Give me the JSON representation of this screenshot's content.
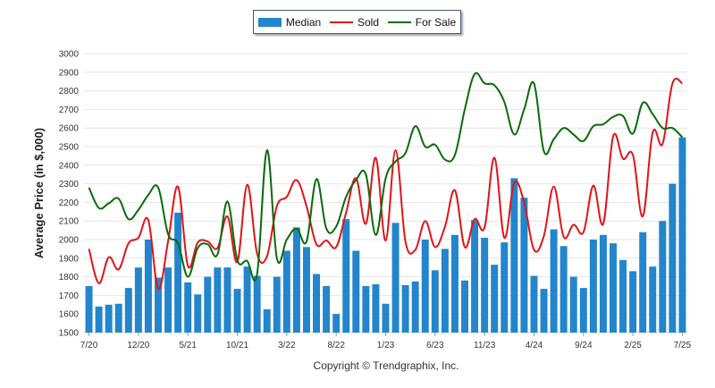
{
  "legend": {
    "median_label": "Median",
    "sold_label": "Sold",
    "forsale_label": "For Sale"
  },
  "colors": {
    "median": "#2385cc",
    "sold": "#e0141b",
    "forsale": "#0a6b0a"
  },
  "copyright": "Copyright © Trendgraphix, Inc.",
  "chart_data": {
    "type": "bar",
    "ylabel": "Average Price (in $,000)",
    "ylim": [
      1500,
      3000
    ],
    "yticks": [
      1500,
      1600,
      1700,
      1800,
      1900,
      2000,
      2100,
      2200,
      2300,
      2400,
      2500,
      2600,
      2700,
      2800,
      2900,
      3000
    ],
    "grid": true,
    "legend_position": "top-center",
    "categories": [
      "7/20",
      "8/20",
      "9/20",
      "10/20",
      "11/20",
      "12/20",
      "1/21",
      "2/21",
      "3/21",
      "4/21",
      "5/21",
      "6/21",
      "7/21",
      "8/21",
      "9/21",
      "10/21",
      "11/21",
      "12/21",
      "1/22",
      "2/22",
      "3/22",
      "4/22",
      "5/22",
      "6/22",
      "7/22",
      "8/22",
      "9/22",
      "10/22",
      "11/22",
      "12/22",
      "1/23",
      "2/23",
      "3/23",
      "4/23",
      "5/23",
      "6/23",
      "7/23",
      "8/23",
      "9/23",
      "10/23",
      "11/23",
      "12/23",
      "1/24",
      "2/24",
      "3/24",
      "4/24",
      "5/24",
      "6/24",
      "7/24",
      "8/24",
      "9/24",
      "10/24",
      "11/24",
      "12/24",
      "1/25",
      "2/25",
      "3/25",
      "4/25",
      "5/25",
      "6/25",
      "7/25"
    ],
    "xticks": [
      "7/20",
      "12/20",
      "5/21",
      "10/21",
      "3/22",
      "8/22",
      "1/23",
      "6/23",
      "11/23",
      "4/24",
      "9/24",
      "2/25",
      "7/25"
    ],
    "series": [
      {
        "name": "Median",
        "kind": "bar",
        "values": [
          1750,
          1640,
          1650,
          1655,
          1740,
          1850,
          2000,
          1795,
          1850,
          2145,
          1770,
          1705,
          1800,
          1850,
          1850,
          1735,
          1855,
          1805,
          1625,
          1800,
          1940,
          2065,
          1960,
          1815,
          1750,
          1600,
          2110,
          1940,
          1750,
          1760,
          1655,
          2090,
          1755,
          1775,
          2000,
          1835,
          1950,
          2025,
          1780,
          2105,
          2010,
          1865,
          1985,
          2330,
          2225,
          1805,
          1735,
          2055,
          1965,
          1800,
          1740,
          2000,
          2025,
          1980,
          1890,
          1830,
          2040,
          1855,
          2100,
          2300,
          2550
        ]
      },
      {
        "name": "Sold",
        "kind": "line",
        "values": [
          1950,
          1765,
          1905,
          1840,
          1980,
          2010,
          2105,
          1735,
          1990,
          2285,
          1860,
          1985,
          1990,
          1955,
          2125,
          1880,
          2295,
          1925,
          1910,
          2180,
          2230,
          2320,
          2180,
          1975,
          1995,
          1960,
          2145,
          2330,
          2085,
          2440,
          1995,
          2480,
          1990,
          1945,
          2100,
          1960,
          2070,
          2265,
          1960,
          2110,
          2065,
          2440,
          2010,
          2305,
          2200,
          1945,
          2020,
          2285,
          2015,
          2080,
          2040,
          2290,
          2085,
          2555,
          2435,
          2455,
          2125,
          2575,
          2515,
          2840,
          2840
        ]
      },
      {
        "name": "For Sale",
        "kind": "line",
        "values": [
          2280,
          2170,
          2195,
          2220,
          2110,
          2160,
          2240,
          2280,
          2030,
          1980,
          1800,
          1955,
          1975,
          1920,
          2205,
          1890,
          1885,
          1815,
          2480,
          1900,
          2000,
          2060,
          1990,
          2325,
          2060,
          2070,
          2230,
          2320,
          2350,
          2025,
          2330,
          2420,
          2465,
          2610,
          2500,
          2510,
          2430,
          2455,
          2700,
          2890,
          2840,
          2830,
          2740,
          2565,
          2700,
          2840,
          2475,
          2540,
          2600,
          2565,
          2530,
          2610,
          2620,
          2660,
          2665,
          2570,
          2735,
          2675,
          2600,
          2600,
          2550
        ]
      }
    ]
  }
}
